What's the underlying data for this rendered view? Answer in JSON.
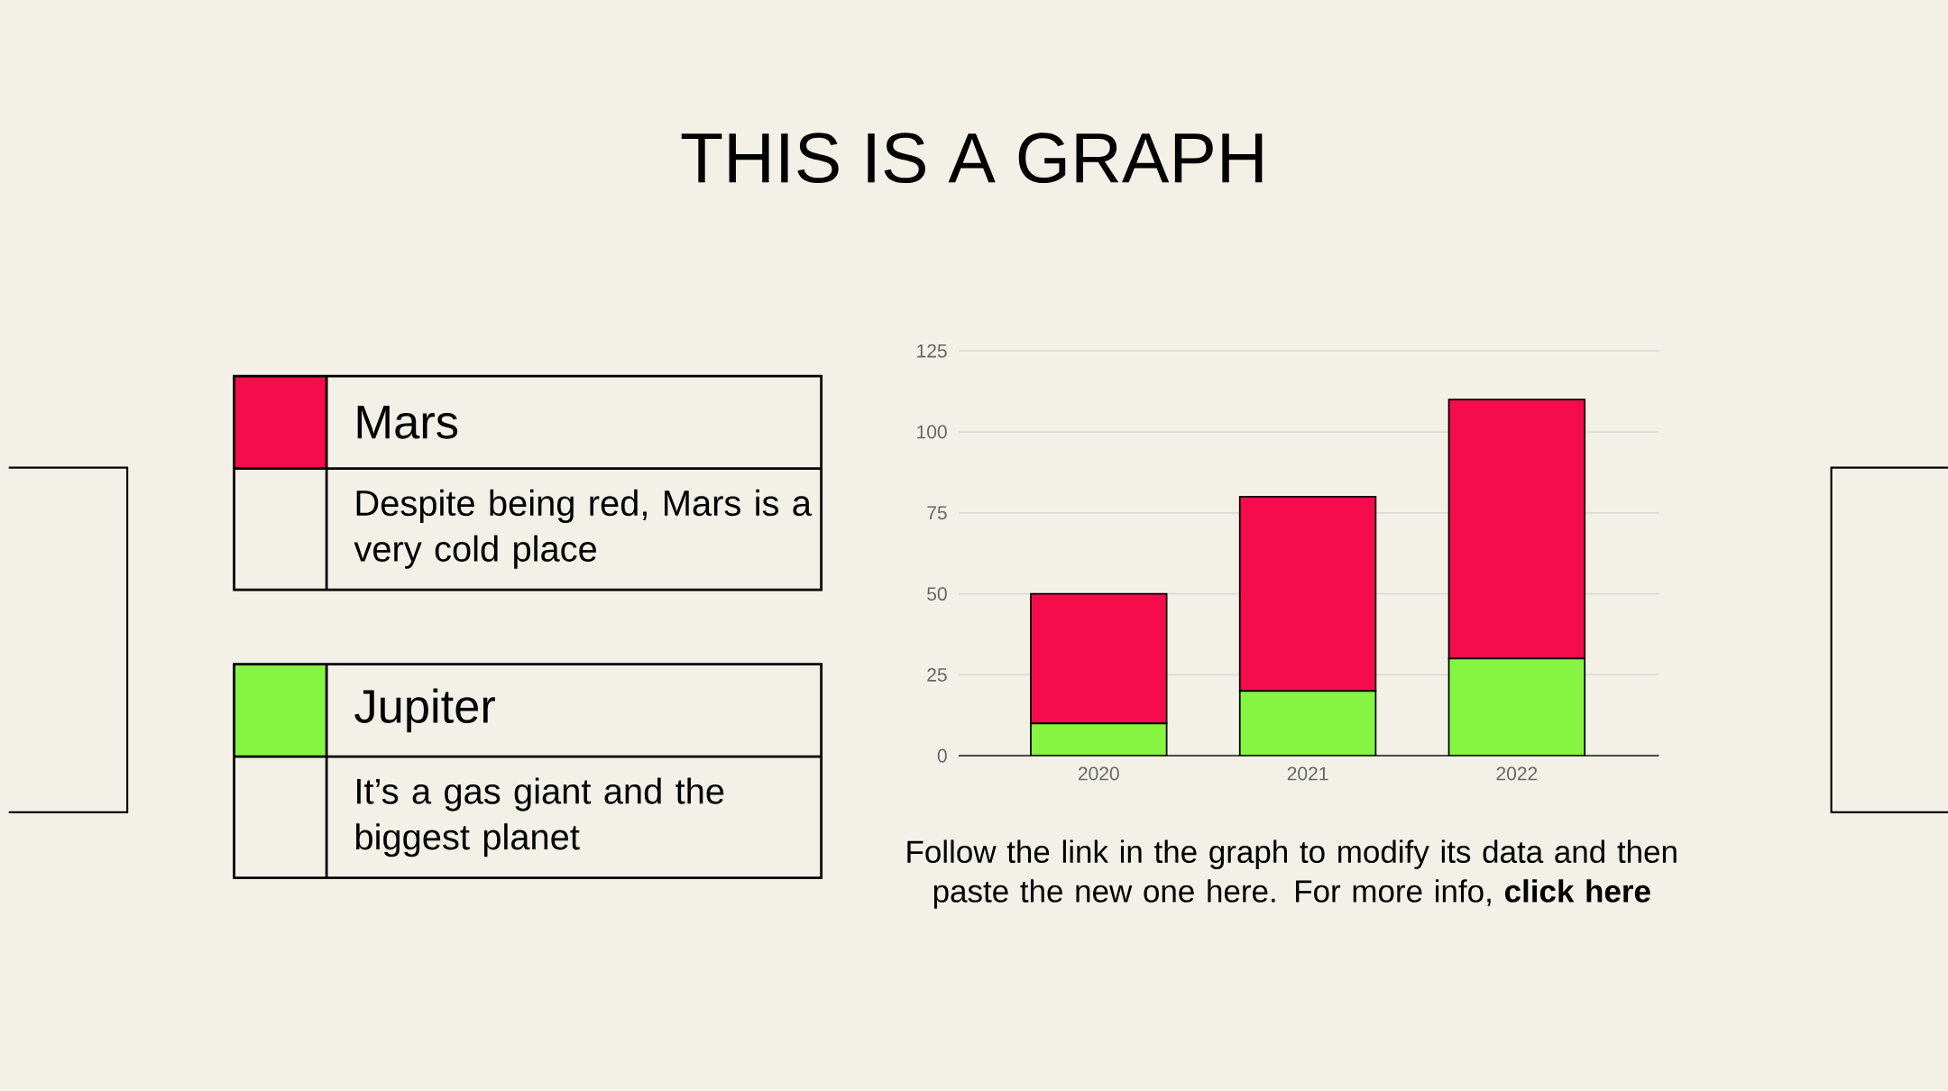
{
  "chart_data": {
    "type": "bar",
    "title": "THIS IS A GRAPH",
    "categories": [
      "2020",
      "2021",
      "2022"
    ],
    "stacked": true,
    "series": [
      {
        "name": "Jupiter",
        "color": "#85f542",
        "values": [
          10,
          20,
          30
        ]
      },
      {
        "name": "Mars",
        "color": "#f50c4a",
        "values": [
          40,
          60,
          80
        ]
      }
    ],
    "ylim": [
      0,
      125
    ],
    "yticks": [
      0,
      25,
      50,
      75,
      100,
      125
    ],
    "grid": "y",
    "legend": "left",
    "annotations": [
      "Despite being red, Mars is a very cold place",
      "It’s a gas giant and the biggest planet",
      "Follow the link in the graph to modify its data and then paste the new one here. For more info, **click here**"
    ]
  }
}
